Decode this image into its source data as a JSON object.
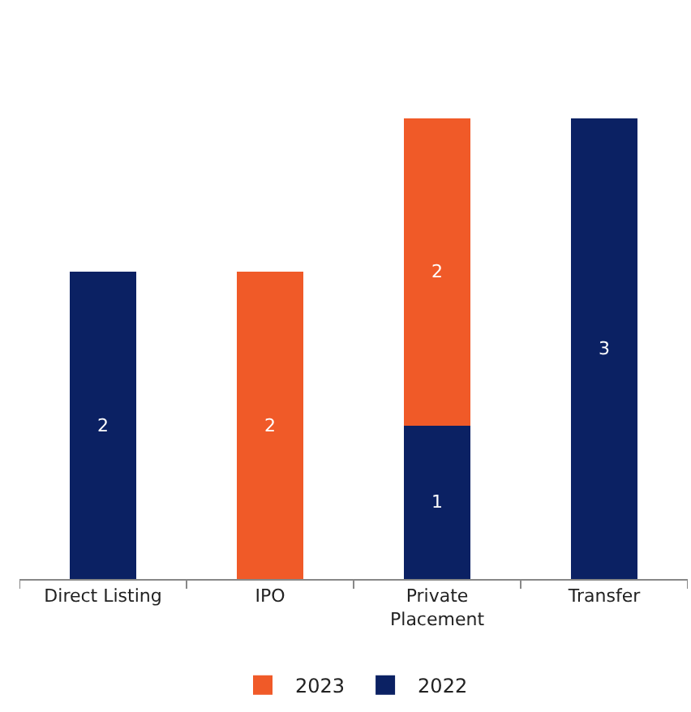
{
  "chart_data": {
    "type": "bar",
    "stacked": true,
    "data_labels": true,
    "legend": "bottom",
    "categories": [
      "Direct Listing",
      "IPO",
      "Private Placement",
      "Transfer"
    ],
    "series": [
      {
        "name": "2022",
        "color": "#0b2163",
        "values": [
          2,
          null,
          1,
          3
        ]
      },
      {
        "name": "2023",
        "color": "#f05a28",
        "values": [
          null,
          2,
          2,
          null
        ]
      }
    ]
  }
}
